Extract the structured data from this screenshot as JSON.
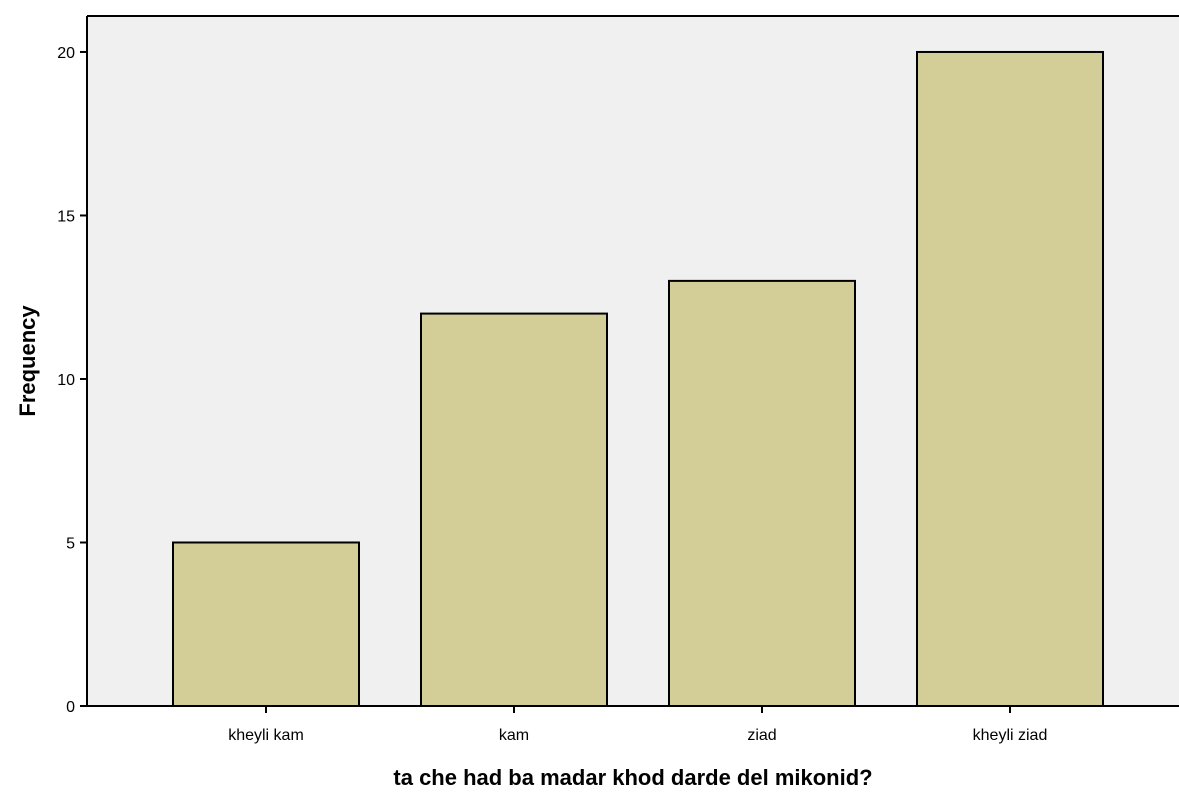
{
  "chart_data": {
    "type": "bar",
    "title": "",
    "xlabel": "ta che had ba madar khod darde del mikonid?",
    "ylabel": "Frequency",
    "categories": [
      "kheyli kam",
      "kam",
      "ziad",
      "kheyli ziad"
    ],
    "values": [
      5,
      12,
      13,
      20
    ],
    "ylim": [
      0,
      21.1
    ],
    "yticks": [
      0,
      5,
      10,
      15,
      20
    ],
    "grid": false,
    "legend": "none",
    "colors": {
      "plot_background": "#f0f0f0",
      "bar_fill": "#d3ce97",
      "bar_stroke": "#000000",
      "axis": "#000000"
    }
  }
}
